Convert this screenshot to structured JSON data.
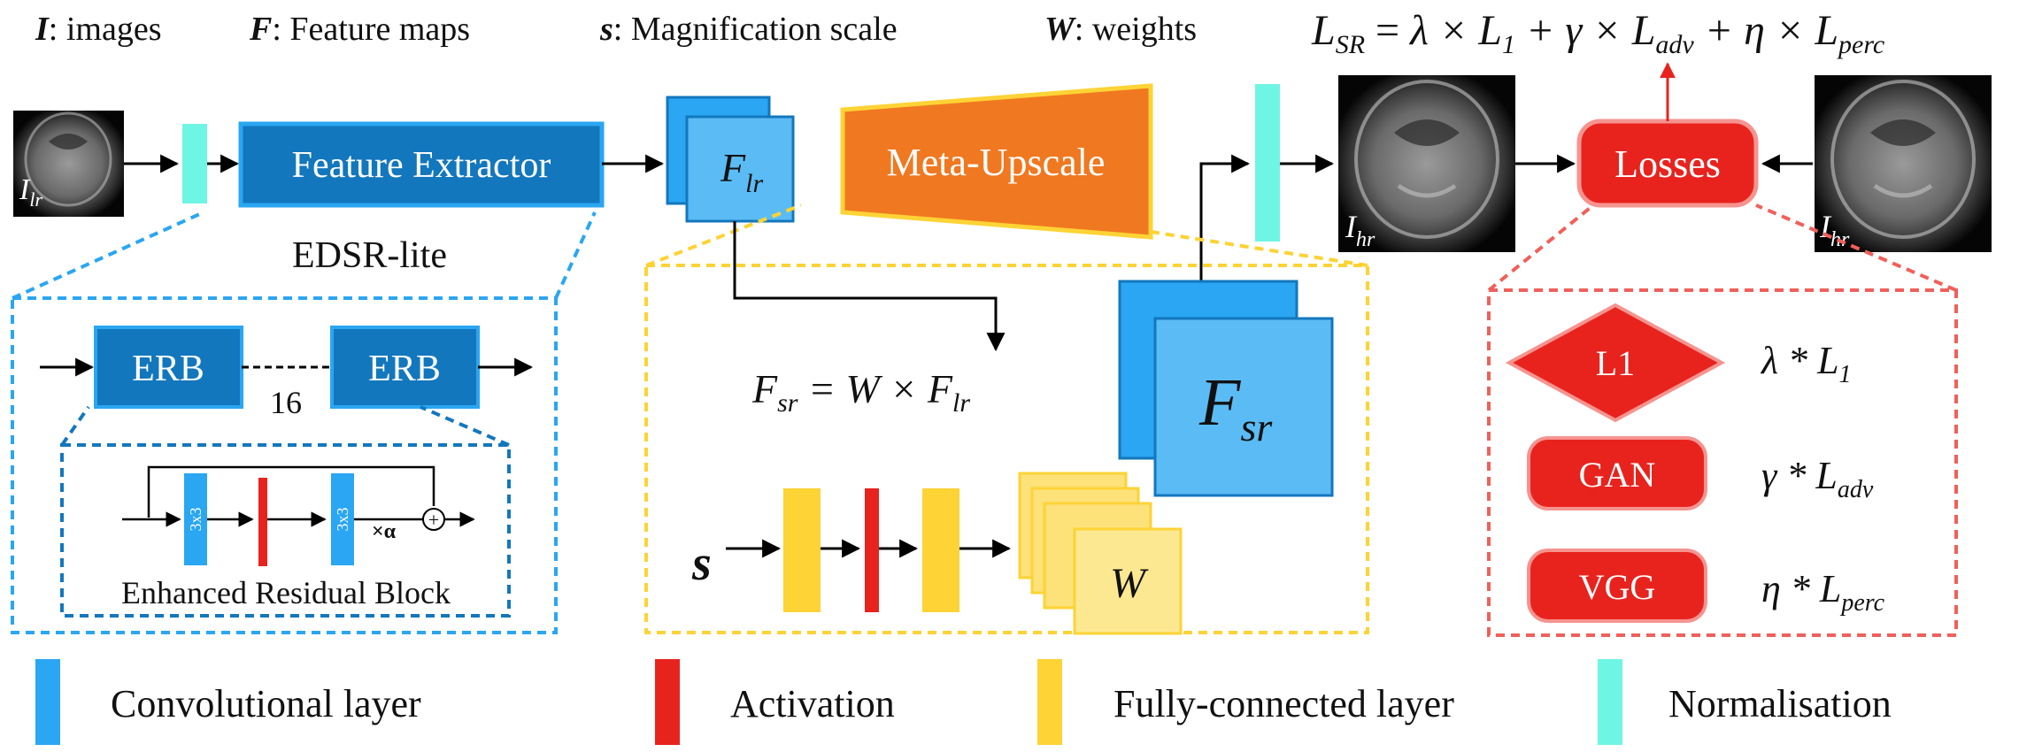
{
  "legend_top": {
    "images": {
      "sym": "I",
      "text": ": images"
    },
    "features": {
      "sym": "F",
      "text": ": Feature maps"
    },
    "scale": {
      "sym": "s",
      "text": ": Magnification scale"
    },
    "weights": {
      "sym": "W",
      "text": ": weights"
    }
  },
  "loss_formula": {
    "lhs": "L",
    "lhs_sub": "SR",
    "eq": " = ",
    "t1_coef": "λ × ",
    "t1": "L",
    "t1_sub": "1",
    "t2_coef": " + γ × ",
    "t2": "L",
    "t2_sub": "adv",
    "t3_coef": " + η × ",
    "t3": "L",
    "t3_sub": "perc"
  },
  "input_image": {
    "label": "I",
    "sub": "lr"
  },
  "feature_extractor": {
    "label": "Feature Extractor",
    "caption": "EDSR-lite"
  },
  "f_lr": {
    "label": "F",
    "sub": "lr"
  },
  "meta_upscale": {
    "label": "Meta-Upscale"
  },
  "output_image": {
    "label": "I",
    "sub": "hr"
  },
  "losses": {
    "label": "Losses"
  },
  "target_image": {
    "label": "I",
    "sub": "hr"
  },
  "edsr_detail": {
    "erb_label": "ERB",
    "count": "16",
    "conv_label": "3x3",
    "alpha": "×α",
    "plus": "+",
    "caption": "Enhanced Residual Block"
  },
  "meta_detail": {
    "eq_lhs": "F",
    "eq_lhs_sub": "sr",
    "eq_mid": " = W × ",
    "eq_rhs": "F",
    "eq_rhs_sub": "lr",
    "s_label": "s",
    "w_label": "W",
    "fsr_label": "F",
    "fsr_sub": "sr"
  },
  "loss_detail": [
    {
      "name": "L1",
      "shape": "diamond",
      "coef": "λ * ",
      "term": "L",
      "sub": "1"
    },
    {
      "name": "GAN",
      "shape": "rounded",
      "coef": "γ * ",
      "term": "L",
      "sub": "adv"
    },
    {
      "name": "VGG",
      "shape": "rounded",
      "coef": "η * ",
      "term": "L",
      "sub": "perc"
    }
  ],
  "legend_bottom": [
    {
      "label": "Convolutional layer",
      "color": "#2aa6f2"
    },
    {
      "label": "Activation",
      "color": "#e8231e"
    },
    {
      "label": "Fully-connected layer",
      "color": "#fdd335"
    },
    {
      "label": "Normalisation",
      "color": "#6ff5e3"
    }
  ],
  "colors": {
    "conv": "#2aa6f2",
    "conv_dark": "#1377bd",
    "activation": "#e8231e",
    "fc": "#fdd335",
    "norm": "#6ff5e3",
    "meta": "#f07820",
    "loss": "#e8231e"
  }
}
